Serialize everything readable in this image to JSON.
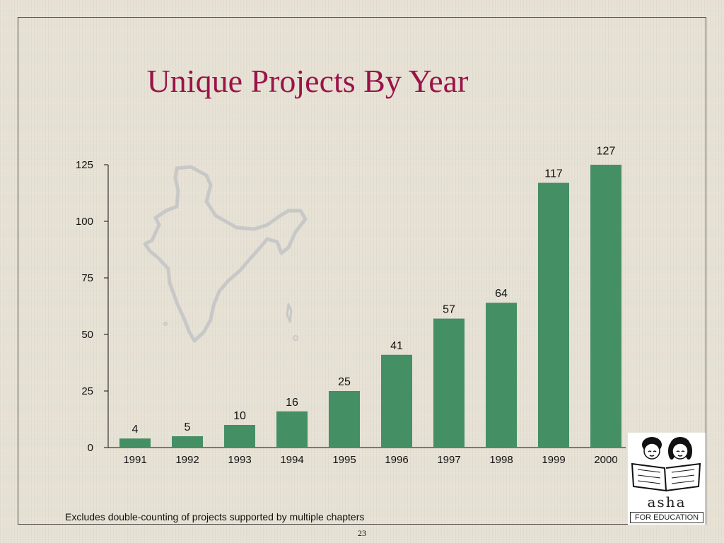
{
  "title": "Unique Projects By Year",
  "footnote": "Excludes double-counting of projects supported by multiple chapters",
  "page_number": "23",
  "logo": {
    "wordmark": "asha",
    "subtitle": "FOR EDUCATION"
  },
  "colors": {
    "bar": "#458f65",
    "title": "#9a1448",
    "map_outline": "#c9c9c9"
  },
  "chart_data": {
    "type": "bar",
    "categories": [
      "1991",
      "1992",
      "1993",
      "1994",
      "1995",
      "1996",
      "1997",
      "1998",
      "1999",
      "2000"
    ],
    "values": [
      4,
      5,
      10,
      16,
      25,
      41,
      57,
      64,
      117,
      127
    ],
    "yticks": [
      0,
      25,
      50,
      75,
      100,
      125
    ],
    "ylim": [
      0,
      125
    ],
    "title": "Unique Projects By Year",
    "xlabel": "",
    "ylabel": "",
    "grid": false,
    "legend": "none"
  }
}
